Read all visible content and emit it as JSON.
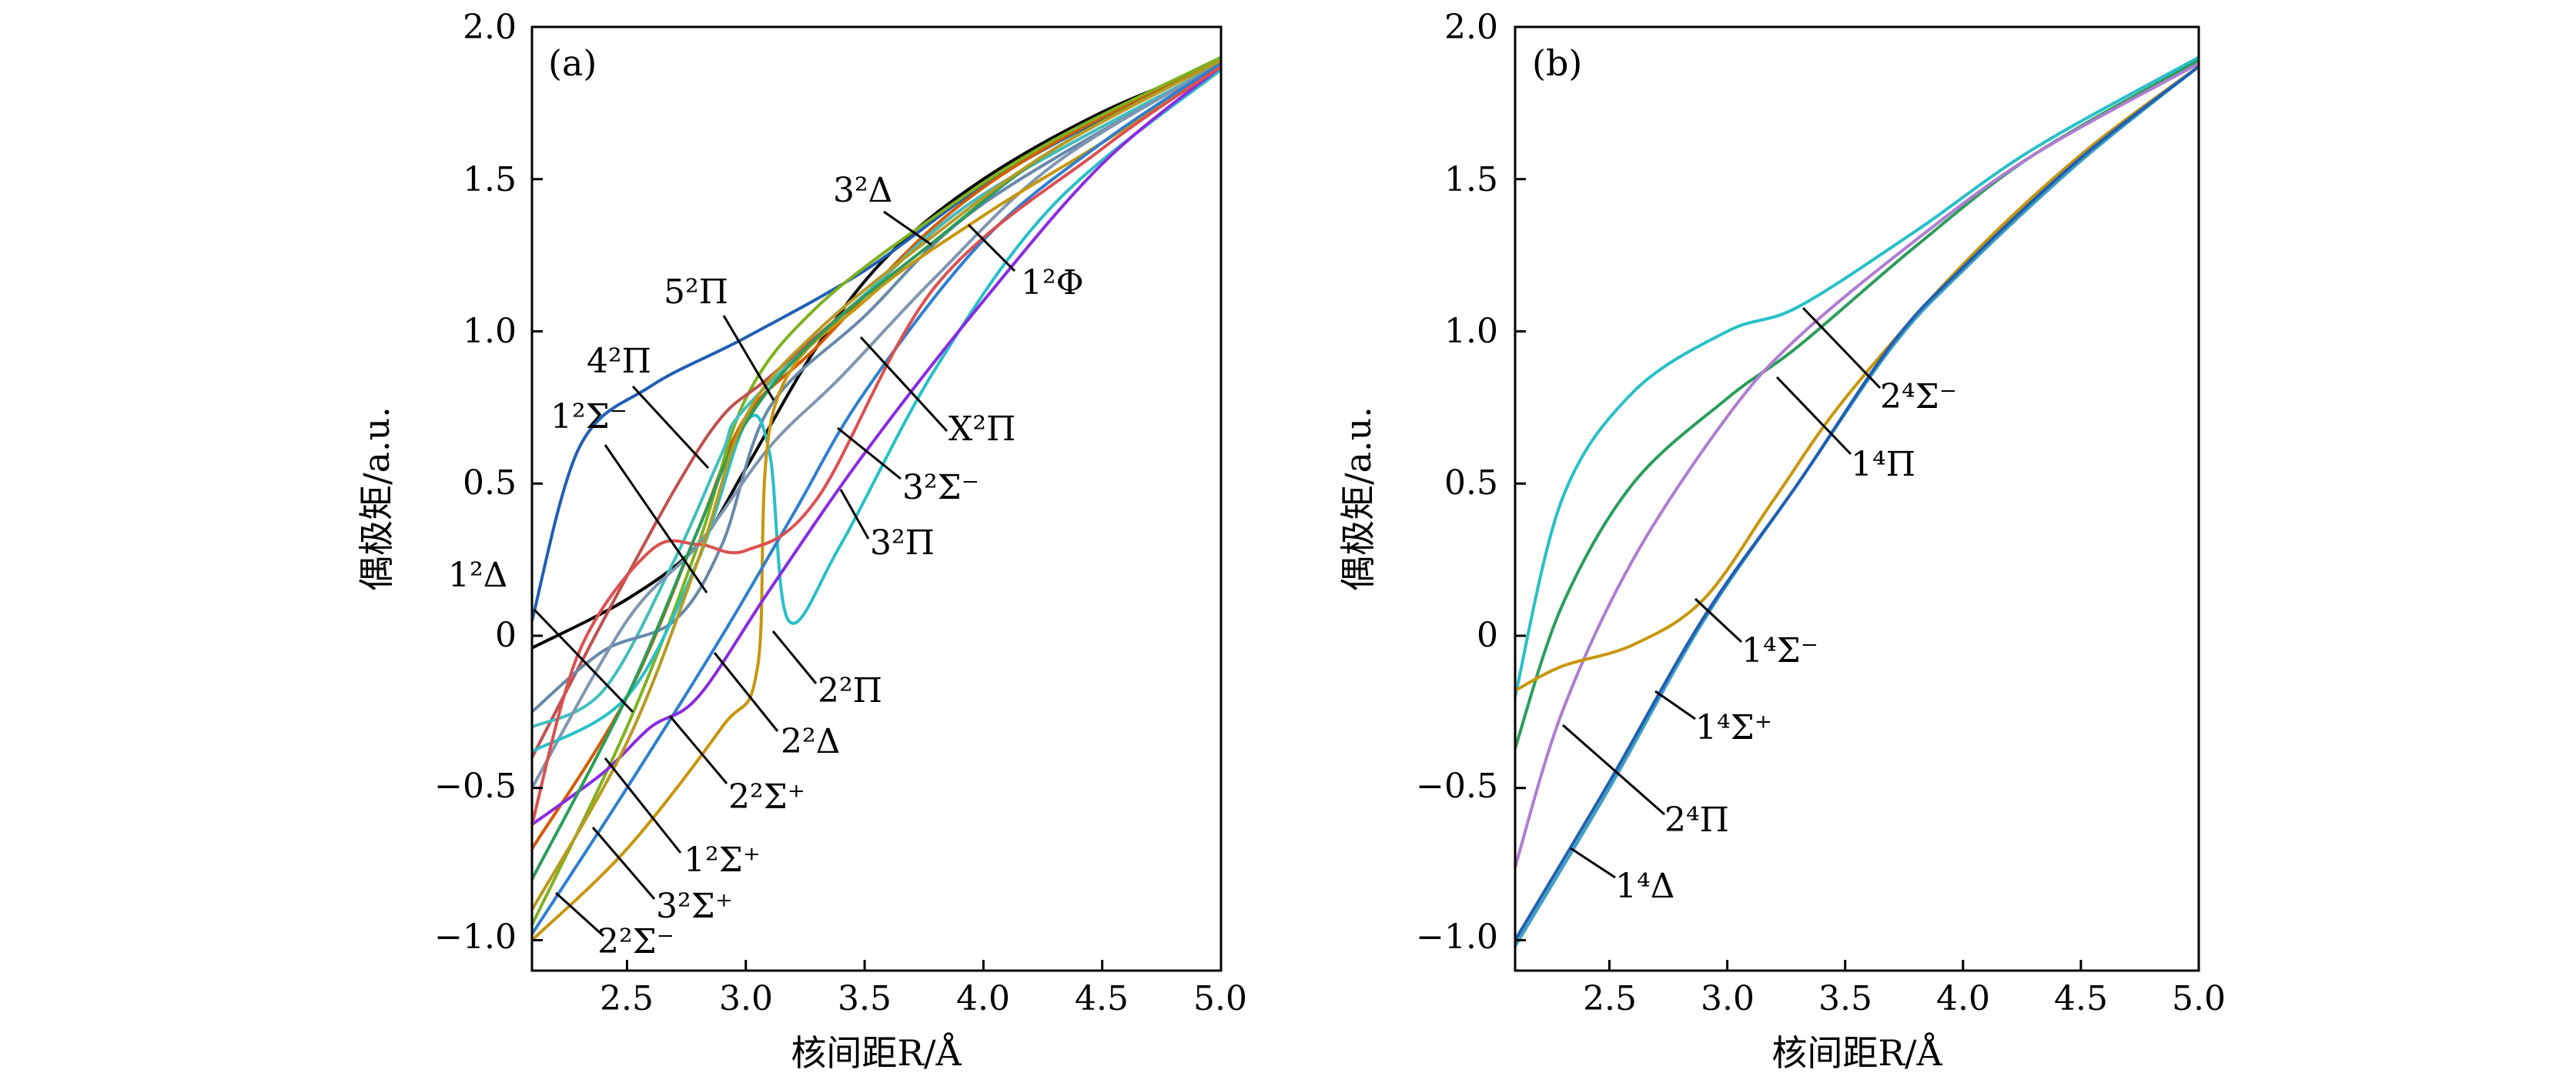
{
  "chart_data": [
    {
      "type": "line",
      "panel": "(a)",
      "xlabel": "核间距R/Å",
      "ylabel": "偶极矩/a.u.",
      "xlim": [
        2.1,
        5.0
      ],
      "ylim": [
        -1.1,
        2.0
      ],
      "xticks": [
        "2.5",
        "3.0",
        "3.5",
        "4.0",
        "4.5",
        "5.0"
      ],
      "yticks": [
        "−1.0",
        "−0.5",
        "0",
        "0.5",
        "1.0",
        "1.5",
        "2.0"
      ],
      "series": [
        {
          "name": "X²Π",
          "color": "#000000",
          "x": [
            2.1,
            2.5,
            2.8,
            3.0,
            3.3,
            3.6,
            4.0,
            4.5,
            5.0
          ],
          "y": [
            -0.04,
            0.12,
            0.3,
            0.55,
            0.95,
            1.25,
            1.5,
            1.72,
            1.88
          ]
        },
        {
          "name": "3²Δ",
          "color": "#1f5fb4",
          "x": [
            2.1,
            2.3,
            2.6,
            3.0,
            3.5,
            4.0,
            4.5,
            5.0
          ],
          "y": [
            0.05,
            0.62,
            0.82,
            0.98,
            1.2,
            1.48,
            1.7,
            1.9
          ]
        },
        {
          "name": "1²Φ",
          "color": "#d45a00",
          "x": [
            2.1,
            2.5,
            2.8,
            3.0,
            3.3,
            3.8,
            4.3,
            5.0
          ],
          "y": [
            -0.7,
            -0.2,
            0.35,
            0.72,
            0.95,
            1.35,
            1.62,
            1.89
          ]
        },
        {
          "name": "5²Π",
          "color": "#7db21e",
          "x": [
            2.1,
            2.5,
            2.8,
            3.0,
            3.3,
            3.8,
            4.3,
            5.0
          ],
          "y": [
            -0.95,
            -0.3,
            0.3,
            0.78,
            1.08,
            1.38,
            1.63,
            1.9
          ]
        },
        {
          "name": "4²Π",
          "color": "#c0504d",
          "x": [
            2.1,
            2.4,
            2.7,
            2.9,
            3.1,
            3.5,
            4.0,
            5.0
          ],
          "y": [
            -0.4,
            0.05,
            0.48,
            0.72,
            0.85,
            1.12,
            1.45,
            1.88
          ]
        },
        {
          "name": "1²Σ⁻",
          "color": "#3fbfbf",
          "x": [
            2.1,
            2.4,
            2.7,
            2.9,
            3.0,
            3.5,
            4.0,
            5.0
          ],
          "y": [
            -0.3,
            -0.18,
            0.25,
            0.6,
            0.75,
            1.12,
            1.45,
            1.88
          ]
        },
        {
          "name": "1²Δ",
          "color": "#6688aa",
          "x": [
            2.1,
            2.4,
            2.7,
            2.9,
            3.1,
            3.5,
            4.0,
            5.0
          ],
          "y": [
            -0.25,
            -0.05,
            0.05,
            0.3,
            0.75,
            1.05,
            1.42,
            1.88
          ]
        },
        {
          "name": "3²Σ⁻",
          "color": "#7f96b2",
          "x": [
            2.1,
            2.5,
            2.8,
            3.1,
            3.4,
            3.8,
            4.3,
            5.0
          ],
          "y": [
            -0.5,
            0.05,
            0.3,
            0.62,
            0.85,
            1.18,
            1.55,
            1.88
          ]
        },
        {
          "name": "3²Π",
          "color": "#27c0c8",
          "x": [
            2.1,
            2.5,
            2.8,
            3.0,
            3.1,
            3.18,
            3.4,
            3.8,
            4.3,
            5.0
          ],
          "y": [
            -0.38,
            -0.2,
            0.25,
            0.7,
            0.6,
            0.05,
            0.3,
            0.88,
            1.42,
            1.86
          ]
        },
        {
          "name": "2²Π",
          "color": "#c8960c",
          "x": [
            2.1,
            2.5,
            2.9,
            3.05,
            3.12,
            3.5,
            4.0,
            4.5,
            5.0
          ],
          "y": [
            -1.0,
            -0.7,
            -0.3,
            -0.1,
            0.75,
            1.1,
            1.38,
            1.62,
            1.87
          ]
        },
        {
          "name": "2²Δ",
          "color": "#2e7fd0",
          "x": [
            2.1,
            2.5,
            2.9,
            3.2,
            3.5,
            4.0,
            4.5,
            5.0
          ],
          "y": [
            -0.98,
            -0.5,
            0.0,
            0.4,
            0.8,
            1.3,
            1.62,
            1.88
          ]
        },
        {
          "name": "2²Σ⁺",
          "color": "#8a2be2",
          "x": [
            2.1,
            2.4,
            2.6,
            2.8,
            3.1,
            3.5,
            4.0,
            4.5,
            5.0
          ],
          "y": [
            -0.62,
            -0.45,
            -0.3,
            -0.2,
            0.15,
            0.6,
            1.1,
            1.55,
            1.87
          ]
        },
        {
          "name": "1²Σ⁺",
          "color": "#dc5050",
          "x": [
            2.1,
            2.3,
            2.6,
            2.8,
            3.0,
            3.3,
            3.8,
            4.5,
            5.0
          ],
          "y": [
            -0.62,
            -0.05,
            0.28,
            0.3,
            0.28,
            0.45,
            1.15,
            1.6,
            1.87
          ]
        },
        {
          "name": "3²Σ⁺",
          "color": "#2a9d5c",
          "x": [
            2.1,
            2.5,
            2.8,
            3.0,
            3.3,
            3.8,
            4.3,
            5.0
          ],
          "y": [
            -0.8,
            -0.2,
            0.35,
            0.7,
            0.98,
            1.3,
            1.6,
            1.89
          ]
        },
        {
          "name": "2²Σ⁻",
          "color": "#b89a20",
          "x": [
            2.1,
            2.5,
            2.8,
            3.0,
            3.3,
            3.8,
            4.3,
            5.0
          ],
          "y": [
            -0.9,
            -0.35,
            0.25,
            0.72,
            1.0,
            1.32,
            1.6,
            1.89
          ]
        }
      ],
      "annotations": [
        "3²Δ",
        "1²Φ",
        "5²Π",
        "4²Π",
        "X²Π",
        "1²Σ⁻",
        "3²Σ⁻",
        "3²Π",
        "1²Δ",
        "2²Π",
        "2²Δ",
        "2²Σ⁺",
        "1²Σ⁺",
        "3²Σ⁺",
        "2²Σ⁻"
      ]
    },
    {
      "type": "line",
      "panel": "(b)",
      "xlabel": "核间距R/Å",
      "ylabel": "偶极矩/a.u.",
      "xlim": [
        2.1,
        5.0
      ],
      "ylim": [
        -1.1,
        2.0
      ],
      "xticks": [
        "2.5",
        "3.0",
        "3.5",
        "4.0",
        "4.5",
        "5.0"
      ],
      "yticks": [
        "−1.0",
        "−0.5",
        "0",
        "0.5",
        "1.0",
        "1.5",
        "2.0"
      ],
      "series": [
        {
          "name": "2⁴Σ⁻",
          "color": "#27c0c8",
          "x": [
            2.1,
            2.3,
            2.6,
            3.0,
            3.3,
            3.8,
            4.3,
            5.0
          ],
          "y": [
            -0.2,
            0.45,
            0.8,
            1.0,
            1.08,
            1.33,
            1.6,
            1.9
          ]
        },
        {
          "name": "1⁴Π",
          "color": "#2a9d5c",
          "x": [
            2.1,
            2.3,
            2.6,
            3.0,
            3.3,
            3.8,
            4.3,
            5.0
          ],
          "y": [
            -0.37,
            0.1,
            0.5,
            0.78,
            0.95,
            1.28,
            1.58,
            1.89
          ]
        },
        {
          "name": "2⁴Π",
          "color": "#b07cd0",
          "x": [
            2.1,
            2.3,
            2.6,
            3.0,
            3.3,
            3.8,
            4.3,
            5.0
          ],
          "y": [
            -0.76,
            -0.25,
            0.25,
            0.72,
            0.98,
            1.3,
            1.58,
            1.88
          ]
        },
        {
          "name": "1⁴Σ⁻",
          "color": "#c8960c",
          "x": [
            2.1,
            2.3,
            2.6,
            2.9,
            3.2,
            3.5,
            4.0,
            4.5,
            5.0
          ],
          "y": [
            -0.18,
            -0.1,
            -0.03,
            0.12,
            0.45,
            0.78,
            1.22,
            1.58,
            1.87
          ]
        },
        {
          "name": "1⁴Σ⁺",
          "color": "#3f9fbf",
          "x": [
            2.1,
            2.5,
            2.9,
            3.3,
            3.7,
            4.0,
            4.5,
            5.0
          ],
          "y": [
            -1.02,
            -0.5,
            0.05,
            0.5,
            0.95,
            1.2,
            1.56,
            1.87
          ]
        },
        {
          "name": "1⁴Δ",
          "color": "#1f5fb4",
          "x": [
            2.1,
            2.5,
            2.9,
            3.3,
            3.7,
            4.0,
            4.5,
            5.0
          ],
          "y": [
            -1.0,
            -0.48,
            0.06,
            0.5,
            0.96,
            1.21,
            1.57,
            1.87
          ]
        }
      ],
      "annotations": [
        "2⁴Σ⁻",
        "1⁴Π",
        "1⁴Σ⁻",
        "1⁴Σ⁺",
        "2⁴Π",
        "1⁴Δ"
      ]
    }
  ]
}
